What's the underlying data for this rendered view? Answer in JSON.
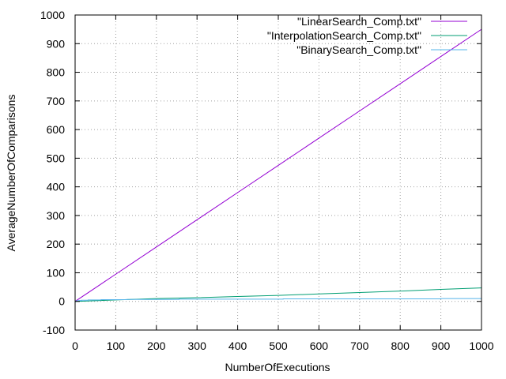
{
  "chart_data": {
    "type": "line",
    "title": "",
    "xlabel": "NumberOfExecutions",
    "ylabel": "AverageNumberOfComparisons",
    "xlim": [
      0,
      1000
    ],
    "ylim": [
      -100,
      1000
    ],
    "xticks": [
      0,
      100,
      200,
      300,
      400,
      500,
      600,
      700,
      800,
      900,
      1000
    ],
    "yticks": [
      -100,
      0,
      100,
      200,
      300,
      400,
      500,
      600,
      700,
      800,
      900,
      1000
    ],
    "grid": true,
    "legend_position": "top-right",
    "series": [
      {
        "name": "\"LinearSearch_Comp.txt\"",
        "color": "#9400d3",
        "style": "line",
        "x": [
          0,
          100,
          200,
          300,
          400,
          500,
          600,
          700,
          800,
          900,
          1000
        ],
        "y": [
          0,
          95,
          190,
          285,
          380,
          475,
          570,
          665,
          760,
          855,
          950
        ]
      },
      {
        "name": "\"InterpolationSearch_Comp.txt\"",
        "color": "#009e73",
        "style": "line",
        "x": [
          0,
          100,
          200,
          300,
          400,
          500,
          600,
          700,
          800,
          900,
          1000
        ],
        "y": [
          0,
          5,
          10,
          13,
          17,
          21,
          26,
          31,
          36,
          42,
          47
        ]
      },
      {
        "name": "\"BinarySearch_Comp.txt\"",
        "color": "#56b4e9",
        "style": "step",
        "x": [
          0,
          2,
          4,
          8,
          16,
          32,
          64,
          128,
          256,
          512,
          900,
          1000
        ],
        "y": [
          0,
          1,
          2,
          3,
          4,
          5,
          6,
          7,
          8,
          9,
          10,
          10
        ]
      }
    ]
  }
}
